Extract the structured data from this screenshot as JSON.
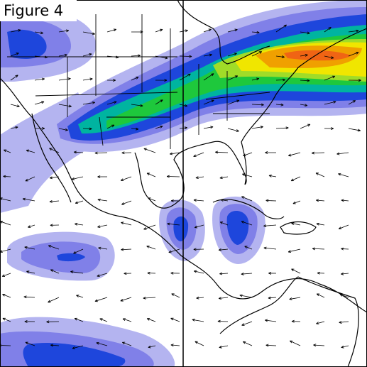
{
  "figure": {
    "label": "Figure 4"
  }
}
